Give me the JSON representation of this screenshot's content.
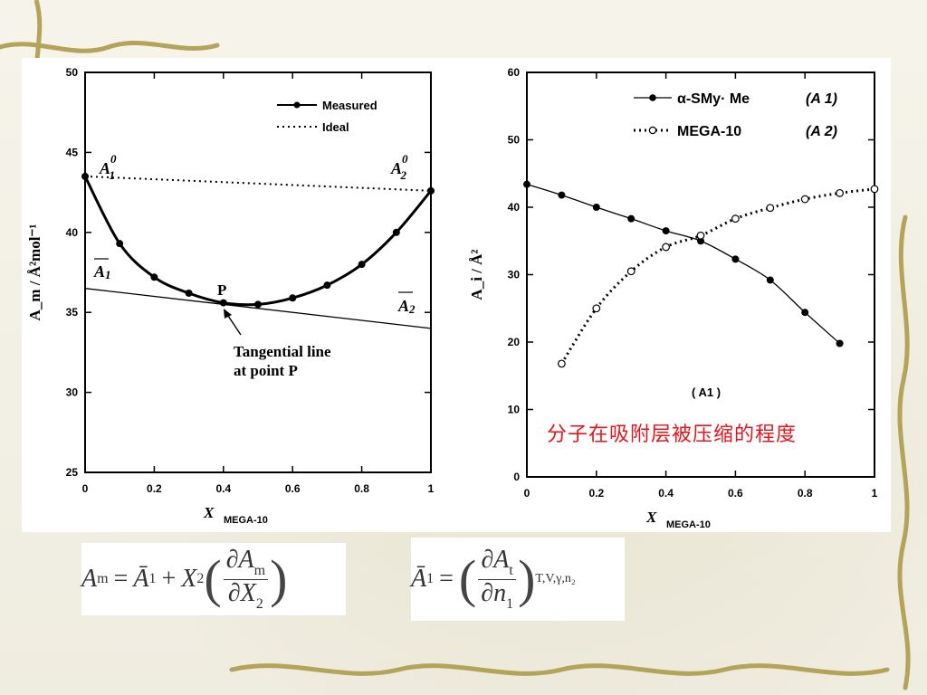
{
  "caption": "分子在吸附层被压缩的程度",
  "chart_data": [
    {
      "type": "line",
      "xlim": [
        0,
        1
      ],
      "ylim": [
        25,
        50
      ],
      "xticks": [
        "0",
        "0.2",
        "0.4",
        "0.6",
        "0.8",
        "1"
      ],
      "yticks": [
        "25",
        "30",
        "35",
        "40",
        "45",
        "50"
      ],
      "ylabel": "A_m / Å²mol⁻¹",
      "xlabel": "X",
      "xlabel_sub": "MEGA-10",
      "legend_placement": "top-right",
      "series": [
        {
          "name": "Measured",
          "style": "solid-dots",
          "x": [
            0,
            0.1,
            0.2,
            0.3,
            0.4,
            0.5,
            0.6,
            0.7,
            0.8,
            0.9,
            1.0
          ],
          "y": [
            43.5,
            39.3,
            37.2,
            36.2,
            35.6,
            35.5,
            35.9,
            36.7,
            38.0,
            40.0,
            42.6
          ]
        },
        {
          "name": "Ideal",
          "style": "dotted",
          "x": [
            0,
            1
          ],
          "y": [
            43.5,
            42.6
          ]
        },
        {
          "name": "Tangential line",
          "style": "thin-solid",
          "x": [
            0,
            1
          ],
          "y": [
            36.5,
            34.0
          ]
        }
      ],
      "annotations": {
        "a1_zero": "A",
        "a1_zero_sup": "0",
        "a1_zero_sub": "1",
        "a2_zero": "A",
        "a2_zero_sup": "0",
        "a2_zero_sub": "2",
        "a1_bar": "A",
        "a1_bar_sub": "1",
        "a2_bar": "A",
        "a2_bar_sub": "2",
        "point": "P",
        "tangent_line1": "Tangential  line",
        "tangent_line2": "at  point  P"
      }
    },
    {
      "type": "line",
      "xlim": [
        0,
        1
      ],
      "ylim": [
        0,
        60
      ],
      "xticks": [
        "0",
        "0.2",
        "0.4",
        "0.6",
        "0.8",
        "1"
      ],
      "yticks": [
        "0",
        "10",
        "20",
        "30",
        "40",
        "50",
        "60"
      ],
      "ylabel": "A_i / Å²",
      "xlabel": "X",
      "xlabel_sub": "MEGA-10",
      "legend_placement": "top-right",
      "series": [
        {
          "name": "α-SMy· Me",
          "symbol_label": "(A 1)",
          "style": "solid-filled",
          "x": [
            0,
            0.1,
            0.2,
            0.3,
            0.4,
            0.5,
            0.6,
            0.7,
            0.8,
            0.9
          ],
          "y": [
            43.4,
            41.8,
            40.0,
            38.3,
            36.5,
            35.0,
            32.3,
            29.2,
            24.4,
            19.8
          ]
        },
        {
          "name": "MEGA-10",
          "symbol_label": "(A 2)",
          "style": "dotted-open",
          "x": [
            0.1,
            0.2,
            0.3,
            0.4,
            0.5,
            0.6,
            0.7,
            0.8,
            0.9,
            1.0
          ],
          "y": [
            16.8,
            25.0,
            30.5,
            34.1,
            35.8,
            38.3,
            39.9,
            41.2,
            42.1,
            42.7
          ]
        }
      ],
      "annotations": {
        "box_label": "( A1 )"
      }
    }
  ],
  "equations": {
    "eq1_lhs": "A",
    "eq1_lhs_sub": "m",
    "eq1_term1": "Ā",
    "eq1_term1_sub": "1",
    "eq1_term2": "X",
    "eq1_term2_sub": "2",
    "eq1_num": "∂A",
    "eq1_num_sub": "m",
    "eq1_den": "∂X",
    "eq1_den_sub": "2",
    "eq2_lhs": "Ā",
    "eq2_lhs_sub": "1",
    "eq2_num": "∂A",
    "eq2_num_sub": "t",
    "eq2_den": "∂n",
    "eq2_den_sub": "1",
    "eq2_cond": "T,V,γ,n₂"
  }
}
